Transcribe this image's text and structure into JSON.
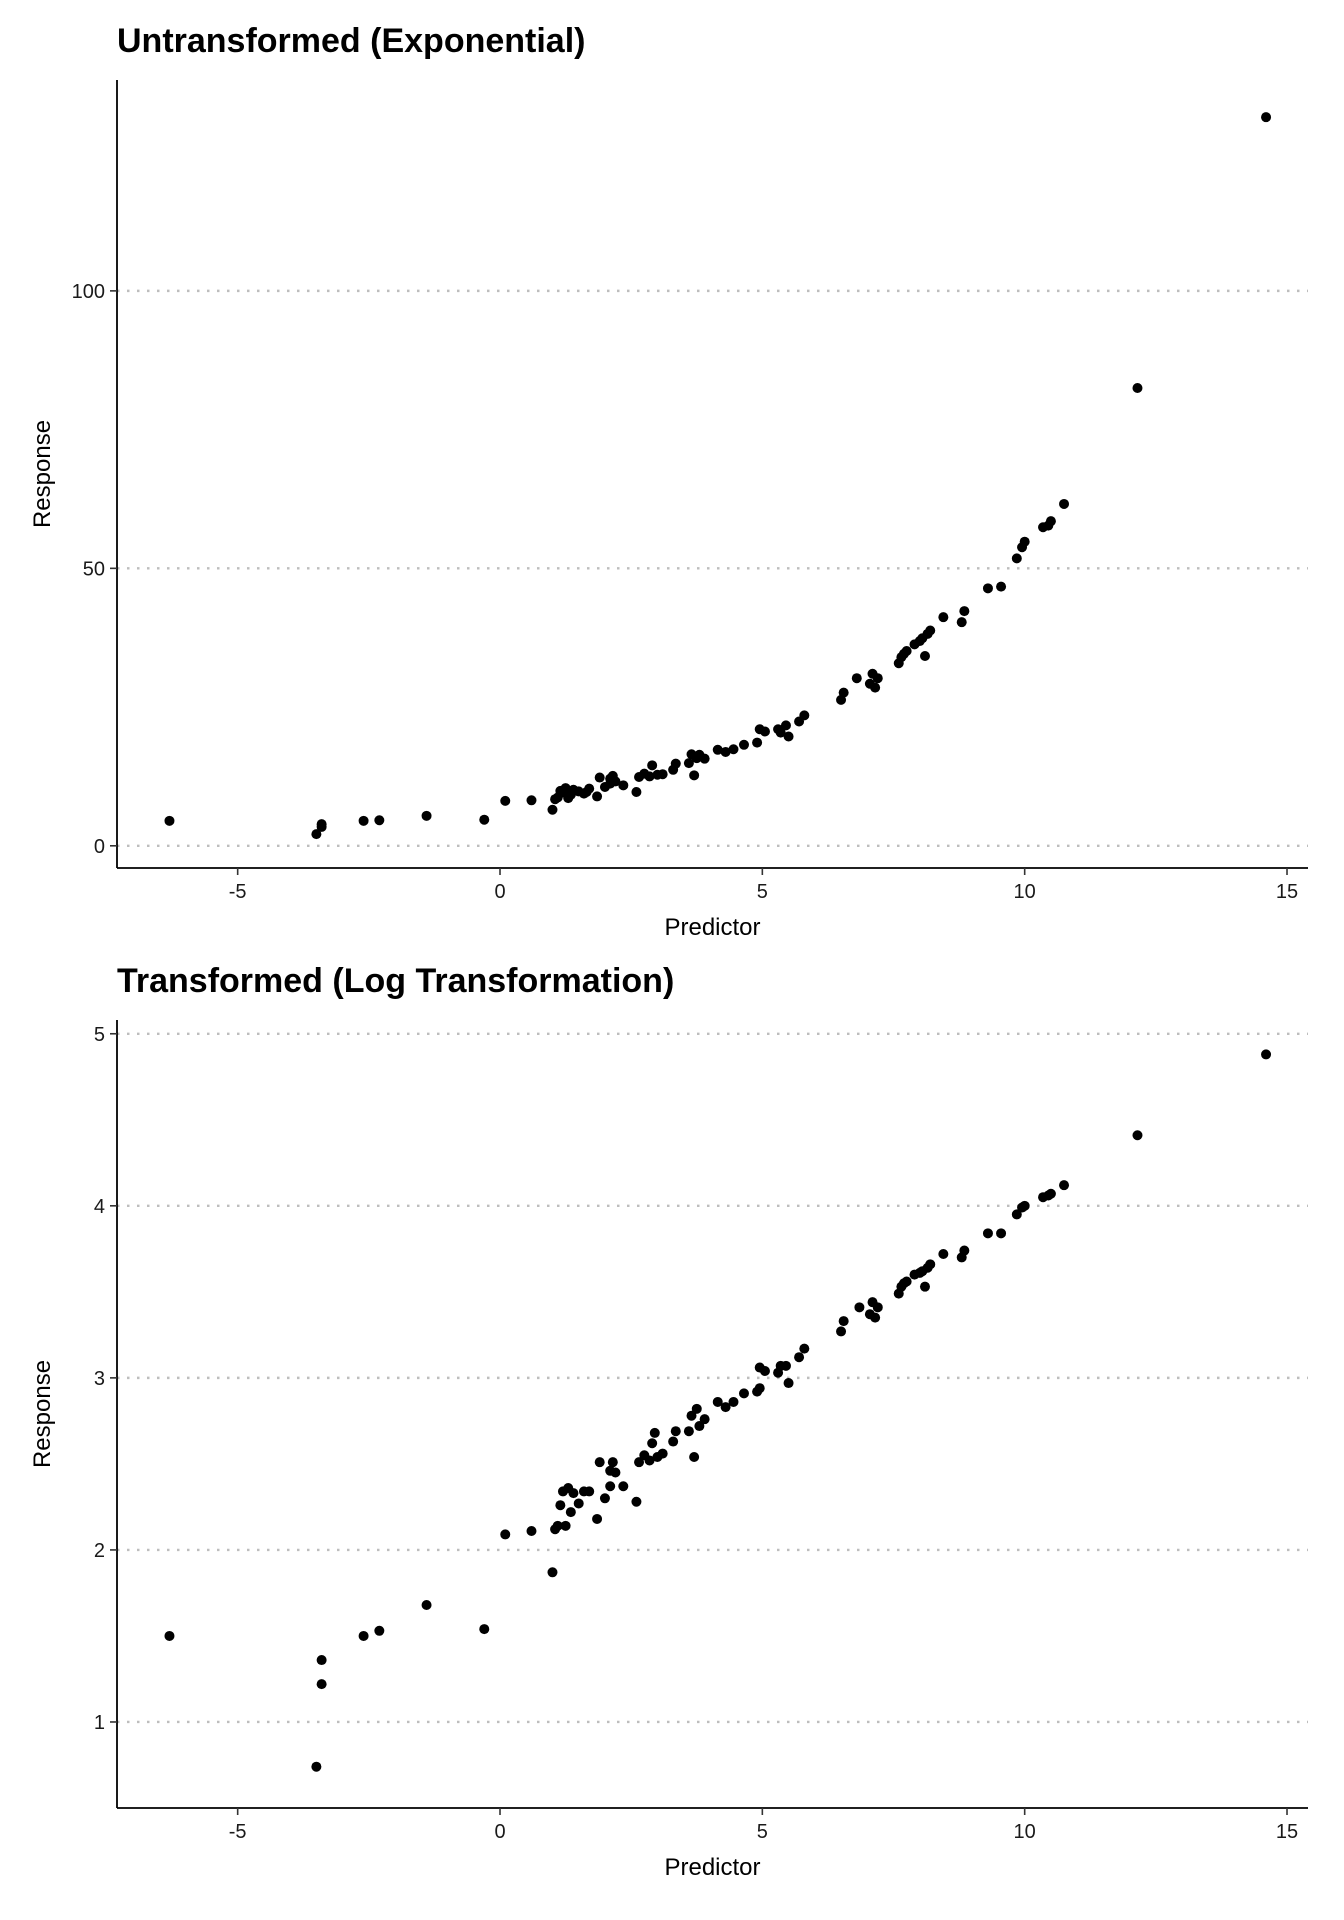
{
  "chart_data": [
    {
      "type": "scatter",
      "title": "Untransformed (Exponential)",
      "xlabel": "Predictor",
      "ylabel": "Response",
      "xlim": [
        -7.3,
        15.4
      ],
      "ylim": [
        -4,
        138
      ],
      "x_ticks": [
        -5,
        0,
        5,
        10,
        15
      ],
      "y_ticks": [
        0,
        50,
        100
      ],
      "grid": "horizontal dotted",
      "legend": "none",
      "points": [
        {
          "x": -6.3,
          "y": 4.5
        },
        {
          "x": -3.5,
          "y": 2.1
        },
        {
          "x": -3.4,
          "y": 3.4
        },
        {
          "x": -3.4,
          "y": 3.9
        },
        {
          "x": -2.6,
          "y": 4.5
        },
        {
          "x": -2.3,
          "y": 4.6
        },
        {
          "x": -1.4,
          "y": 5.4
        },
        {
          "x": -0.3,
          "y": 4.7
        },
        {
          "x": 0.1,
          "y": 8.1
        },
        {
          "x": 0.6,
          "y": 8.2
        },
        {
          "x": 1.0,
          "y": 6.5
        },
        {
          "x": 1.05,
          "y": 8.4
        },
        {
          "x": 1.1,
          "y": 8.7
        },
        {
          "x": 1.15,
          "y": 9.9
        },
        {
          "x": 1.2,
          "y": 9.6
        },
        {
          "x": 1.25,
          "y": 10.4
        },
        {
          "x": 1.3,
          "y": 8.6
        },
        {
          "x": 1.35,
          "y": 9.2
        },
        {
          "x": 1.4,
          "y": 10.1
        },
        {
          "x": 1.5,
          "y": 9.8
        },
        {
          "x": 1.6,
          "y": 9.4
        },
        {
          "x": 1.65,
          "y": 9.7
        },
        {
          "x": 1.7,
          "y": 10.3
        },
        {
          "x": 1.85,
          "y": 8.9
        },
        {
          "x": 1.9,
          "y": 12.3
        },
        {
          "x": 2.0,
          "y": 10.6
        },
        {
          "x": 2.1,
          "y": 11.2
        },
        {
          "x": 2.1,
          "y": 12.1
        },
        {
          "x": 2.15,
          "y": 12.6
        },
        {
          "x": 2.2,
          "y": 11.6
        },
        {
          "x": 2.35,
          "y": 10.9
        },
        {
          "x": 2.6,
          "y": 9.7
        },
        {
          "x": 2.65,
          "y": 12.4
        },
        {
          "x": 2.75,
          "y": 13.0
        },
        {
          "x": 2.85,
          "y": 12.5
        },
        {
          "x": 2.9,
          "y": 14.5
        },
        {
          "x": 3.0,
          "y": 12.8
        },
        {
          "x": 3.1,
          "y": 12.9
        },
        {
          "x": 3.3,
          "y": 13.7
        },
        {
          "x": 3.35,
          "y": 14.8
        },
        {
          "x": 3.6,
          "y": 14.9
        },
        {
          "x": 3.65,
          "y": 16.5
        },
        {
          "x": 3.7,
          "y": 12.7
        },
        {
          "x": 3.75,
          "y": 15.8
        },
        {
          "x": 3.8,
          "y": 16.4
        },
        {
          "x": 3.9,
          "y": 15.7
        },
        {
          "x": 4.15,
          "y": 17.3
        },
        {
          "x": 4.3,
          "y": 16.9
        },
        {
          "x": 4.45,
          "y": 17.4
        },
        {
          "x": 4.65,
          "y": 18.2
        },
        {
          "x": 4.9,
          "y": 18.6
        },
        {
          "x": 4.95,
          "y": 21.0
        },
        {
          "x": 5.05,
          "y": 20.6
        },
        {
          "x": 5.3,
          "y": 21.0
        },
        {
          "x": 5.35,
          "y": 20.4
        },
        {
          "x": 5.45,
          "y": 21.7
        },
        {
          "x": 5.5,
          "y": 19.7
        },
        {
          "x": 5.7,
          "y": 22.4
        },
        {
          "x": 5.8,
          "y": 23.5
        },
        {
          "x": 6.5,
          "y": 26.3
        },
        {
          "x": 6.55,
          "y": 27.6
        },
        {
          "x": 6.8,
          "y": 30.2
        },
        {
          "x": 7.05,
          "y": 29.2
        },
        {
          "x": 7.1,
          "y": 31.0
        },
        {
          "x": 7.15,
          "y": 28.5
        },
        {
          "x": 7.2,
          "y": 30.2
        },
        {
          "x": 7.6,
          "y": 32.9
        },
        {
          "x": 7.65,
          "y": 34.0
        },
        {
          "x": 7.7,
          "y": 34.6
        },
        {
          "x": 7.75,
          "y": 35.1
        },
        {
          "x": 7.9,
          "y": 36.3
        },
        {
          "x": 8.0,
          "y": 36.9
        },
        {
          "x": 8.05,
          "y": 37.4
        },
        {
          "x": 8.1,
          "y": 34.2
        },
        {
          "x": 8.15,
          "y": 38.2
        },
        {
          "x": 8.2,
          "y": 38.8
        },
        {
          "x": 8.45,
          "y": 41.2
        },
        {
          "x": 8.8,
          "y": 40.3
        },
        {
          "x": 8.85,
          "y": 42.3
        },
        {
          "x": 9.3,
          "y": 46.4
        },
        {
          "x": 9.55,
          "y": 46.7
        },
        {
          "x": 9.85,
          "y": 51.8
        },
        {
          "x": 9.95,
          "y": 53.8
        },
        {
          "x": 10.0,
          "y": 54.8
        },
        {
          "x": 10.35,
          "y": 57.4
        },
        {
          "x": 10.45,
          "y": 57.7
        },
        {
          "x": 10.5,
          "y": 58.5
        },
        {
          "x": 10.75,
          "y": 61.6
        },
        {
          "x": 12.15,
          "y": 82.5
        },
        {
          "x": 14.6,
          "y": 131.3
        }
      ]
    },
    {
      "type": "scatter",
      "title": "Transformed (Log Transformation)",
      "xlabel": "Predictor",
      "ylabel": "Response",
      "xlim": [
        -7.3,
        15.4
      ],
      "ylim": [
        0.5,
        5.08
      ],
      "x_ticks": [
        -5,
        0,
        5,
        10,
        15
      ],
      "y_ticks": [
        1,
        2,
        3,
        4,
        5
      ],
      "grid": "horizontal dotted",
      "legend": "none",
      "points": [
        {
          "x": -6.3,
          "y": 1.5
        },
        {
          "x": -3.5,
          "y": 0.74
        },
        {
          "x": -3.4,
          "y": 1.22
        },
        {
          "x": -3.4,
          "y": 1.36
        },
        {
          "x": -2.6,
          "y": 1.5
        },
        {
          "x": -2.3,
          "y": 1.53
        },
        {
          "x": -1.4,
          "y": 1.68
        },
        {
          "x": -0.3,
          "y": 1.54
        },
        {
          "x": 0.1,
          "y": 2.09
        },
        {
          "x": 0.6,
          "y": 2.11
        },
        {
          "x": 1.0,
          "y": 1.87
        },
        {
          "x": 1.05,
          "y": 2.12
        },
        {
          "x": 1.1,
          "y": 2.14
        },
        {
          "x": 1.15,
          "y": 2.26
        },
        {
          "x": 1.2,
          "y": 2.34
        },
        {
          "x": 1.25,
          "y": 2.14
        },
        {
          "x": 1.3,
          "y": 2.36
        },
        {
          "x": 1.35,
          "y": 2.22
        },
        {
          "x": 1.4,
          "y": 2.33
        },
        {
          "x": 1.5,
          "y": 2.27
        },
        {
          "x": 1.6,
          "y": 2.34
        },
        {
          "x": 1.7,
          "y": 2.34
        },
        {
          "x": 1.85,
          "y": 2.18
        },
        {
          "x": 1.9,
          "y": 2.51
        },
        {
          "x": 2.0,
          "y": 2.3
        },
        {
          "x": 2.1,
          "y": 2.37
        },
        {
          "x": 2.1,
          "y": 2.46
        },
        {
          "x": 2.15,
          "y": 2.51
        },
        {
          "x": 2.2,
          "y": 2.45
        },
        {
          "x": 2.35,
          "y": 2.37
        },
        {
          "x": 2.6,
          "y": 2.28
        },
        {
          "x": 2.65,
          "y": 2.51
        },
        {
          "x": 2.75,
          "y": 2.55
        },
        {
          "x": 2.85,
          "y": 2.52
        },
        {
          "x": 2.9,
          "y": 2.62
        },
        {
          "x": 2.95,
          "y": 2.68
        },
        {
          "x": 3.0,
          "y": 2.54
        },
        {
          "x": 3.1,
          "y": 2.56
        },
        {
          "x": 3.3,
          "y": 2.63
        },
        {
          "x": 3.35,
          "y": 2.69
        },
        {
          "x": 3.6,
          "y": 2.69
        },
        {
          "x": 3.65,
          "y": 2.78
        },
        {
          "x": 3.7,
          "y": 2.54
        },
        {
          "x": 3.75,
          "y": 2.82
        },
        {
          "x": 3.8,
          "y": 2.72
        },
        {
          "x": 3.9,
          "y": 2.76
        },
        {
          "x": 4.15,
          "y": 2.86
        },
        {
          "x": 4.3,
          "y": 2.83
        },
        {
          "x": 4.45,
          "y": 2.86
        },
        {
          "x": 4.65,
          "y": 2.91
        },
        {
          "x": 4.9,
          "y": 2.92
        },
        {
          "x": 4.95,
          "y": 3.06
        },
        {
          "x": 4.95,
          "y": 2.94
        },
        {
          "x": 5.05,
          "y": 3.04
        },
        {
          "x": 5.3,
          "y": 3.03
        },
        {
          "x": 5.35,
          "y": 3.07
        },
        {
          "x": 5.45,
          "y": 3.07
        },
        {
          "x": 5.5,
          "y": 2.97
        },
        {
          "x": 5.7,
          "y": 3.12
        },
        {
          "x": 5.8,
          "y": 3.17
        },
        {
          "x": 6.5,
          "y": 3.27
        },
        {
          "x": 6.55,
          "y": 3.33
        },
        {
          "x": 6.85,
          "y": 3.41
        },
        {
          "x": 7.05,
          "y": 3.37
        },
        {
          "x": 7.1,
          "y": 3.44
        },
        {
          "x": 7.15,
          "y": 3.35
        },
        {
          "x": 7.2,
          "y": 3.41
        },
        {
          "x": 7.6,
          "y": 3.49
        },
        {
          "x": 7.65,
          "y": 3.53
        },
        {
          "x": 7.7,
          "y": 3.55
        },
        {
          "x": 7.75,
          "y": 3.56
        },
        {
          "x": 7.9,
          "y": 3.6
        },
        {
          "x": 8.0,
          "y": 3.61
        },
        {
          "x": 8.05,
          "y": 3.62
        },
        {
          "x": 8.1,
          "y": 3.53
        },
        {
          "x": 8.15,
          "y": 3.64
        },
        {
          "x": 8.2,
          "y": 3.66
        },
        {
          "x": 8.45,
          "y": 3.72
        },
        {
          "x": 8.8,
          "y": 3.7
        },
        {
          "x": 8.85,
          "y": 3.74
        },
        {
          "x": 9.3,
          "y": 3.84
        },
        {
          "x": 9.55,
          "y": 3.84
        },
        {
          "x": 9.85,
          "y": 3.95
        },
        {
          "x": 9.95,
          "y": 3.99
        },
        {
          "x": 10.0,
          "y": 4.0
        },
        {
          "x": 10.35,
          "y": 4.05
        },
        {
          "x": 10.45,
          "y": 4.06
        },
        {
          "x": 10.5,
          "y": 4.07
        },
        {
          "x": 10.75,
          "y": 4.12
        },
        {
          "x": 12.15,
          "y": 4.41
        },
        {
          "x": 14.6,
          "y": 4.88
        }
      ]
    }
  ]
}
